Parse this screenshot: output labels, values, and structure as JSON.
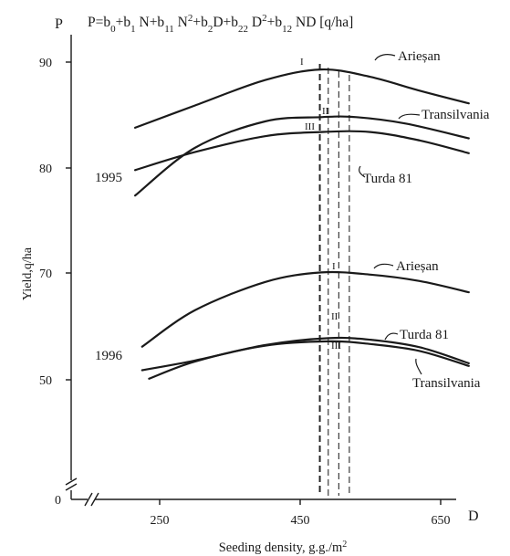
{
  "chart_data": {
    "type": "line",
    "title": "P=b0+b1 N+b11 N2+b2D+b22 D2+b12 ND [q/ha]",
    "title_parts": [
      {
        "t": "P=b",
        "s": ""
      },
      {
        "t": "0",
        "s": "sub"
      },
      {
        "t": "+b",
        "s": ""
      },
      {
        "t": "1",
        "s": "sub"
      },
      {
        "t": " N+b",
        "s": ""
      },
      {
        "t": "11",
        "s": "sub"
      },
      {
        "t": " N",
        "s": ""
      },
      {
        "t": "2",
        "s": "sup"
      },
      {
        "t": "+b",
        "s": ""
      },
      {
        "t": "2",
        "s": "sub"
      },
      {
        "t": "D+b",
        "s": ""
      },
      {
        "t": "22",
        "s": "sub"
      },
      {
        "t": " D",
        "s": ""
      },
      {
        "t": "2",
        "s": "sup"
      },
      {
        "t": "+b",
        "s": ""
      },
      {
        "t": "12",
        "s": "sub"
      },
      {
        "t": " ND [q/ha]",
        "s": ""
      }
    ],
    "y_axis_letter": "P",
    "x_axis_letter": "D",
    "ylabel": "Yield,q/ha",
    "xlabel_main": "Seeding density, g.g./m",
    "xlabel_sup": "2",
    "x_ticks": [
      250,
      450,
      650
    ],
    "y_ticks": [
      50,
      70,
      80,
      90
    ],
    "y_origin_label": "0",
    "y_scale_note": "the 1995 group (labels 80, 90) and the 1996 group (labels 50, 70) are drawn on independent vertical scales",
    "groups": [
      {
        "year": "1995",
        "series": [
          {
            "name": "Arieșan",
            "roman": "I",
            "x": [
              215,
              300,
              400,
              480,
              550,
              620,
              690
            ],
            "y": [
              83.8,
              85.9,
              88.3,
              89.3,
              88.6,
              87.3,
              86.1
            ]
          },
          {
            "name": "Transilvania",
            "roman": "II",
            "x": [
              215,
              300,
              400,
              480,
              530,
              600,
              690
            ],
            "y": [
              77.4,
              81.9,
              84.4,
              84.8,
              84.8,
              84.2,
              82.8
            ]
          },
          {
            "name": "Turda 81",
            "roman": "III",
            "x": [
              215,
              300,
              400,
              480,
              550,
              620,
              690
            ],
            "y": [
              79.8,
              81.5,
              83.0,
              83.4,
              83.4,
              82.6,
              81.4
            ]
          }
        ]
      },
      {
        "year": "1996",
        "series": [
          {
            "name": "Arieșan",
            "roman": "I",
            "x": [
              225,
              300,
              400,
              480,
              550,
              620,
              690
            ],
            "y": [
              56.2,
              63.0,
              68.3,
              70.1,
              69.7,
              68.5,
              66.4
            ]
          },
          {
            "name": "Turda 81",
            "roman": "II",
            "x": [
              225,
              300,
              400,
              490,
              550,
              620,
              690
            ],
            "y": [
              51.8,
              53.6,
              56.5,
              57.8,
              57.5,
              56.1,
              53.1
            ]
          },
          {
            "name": "Transilvania",
            "roman": "III",
            "x": [
              235,
              300,
              400,
              490,
              550,
              620,
              690
            ],
            "y": [
              50.2,
              53.4,
              56.4,
              57.2,
              56.7,
              55.4,
              52.6
            ]
          }
        ]
      }
    ],
    "optimum_lines": [
      {
        "x": 478,
        "style": "bold"
      },
      {
        "x": 490,
        "style": "thin"
      },
      {
        "x": 505,
        "style": "thin"
      },
      {
        "x": 520,
        "style": "thin"
      }
    ]
  }
}
